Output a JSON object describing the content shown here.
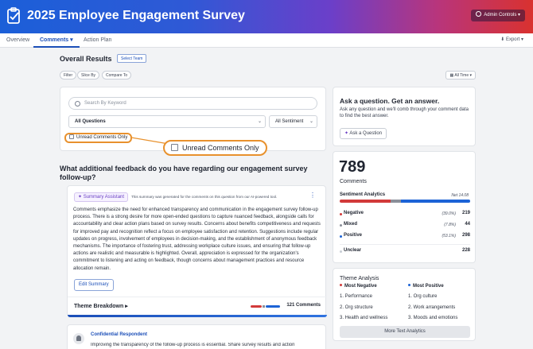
{
  "header": {
    "title": "2025 Employee Engagement Survey",
    "admin_label": "Admin Controls",
    "admin_caret": "▾"
  },
  "tabs": [
    {
      "label": "Overview"
    },
    {
      "label": "Comments",
      "caret": "▾"
    },
    {
      "label": "Action Plan"
    }
  ],
  "export_label": "Export",
  "export_caret": "▾",
  "results": {
    "title": "Overall Results",
    "select_team": "Select Team",
    "filter": "Filter",
    "slice_by": "Slice By",
    "compare_to": "Compare To",
    "time_range": "All Time",
    "time_caret": "▾"
  },
  "filters": {
    "search_placeholder": "Search By Keyword",
    "question_select": "All Questions",
    "sentiment_select": "All Sentiment",
    "caret": "⌄",
    "unread_label": "Unread Comments Only"
  },
  "question": "What additional feedback do you have regarding our engagement survey follow-up?",
  "summary": {
    "badge": "Summary Assistant",
    "note": "This summary was generated for the comments on this question from our AI-powered tool.",
    "kebab": "⋮",
    "text": "Comments emphasize the need for enhanced transparency and communication in the engagement survey follow-up process. There is a strong desire for more open-ended questions to capture nuanced feedback, alongside calls for accountability and clear action plans based on survey results. Concerns about benefits competitiveness and requests for improved pay and recognition reflect a focus on employee satisfaction and retention. Suggestions include regular updates on progress, involvement of employees in decision-making, and the establishment of anonymous feedback mechanisms. The importance of fostering trust, addressing workplace culture issues, and ensuring that follow-up actions are realistic and measurable is highlighted. Overall, appreciation is expressed for the organization's commitment to listening and acting on feedback, though concerns about management practices and resource allocation remain.",
    "edit_button": "Edit Summary",
    "theme_breakdown": "Theme Breakdown",
    "theme_caret": "▸",
    "comment_count": "121 Comments"
  },
  "comment": {
    "respondent": "Confidential Respondent",
    "text": "Improving the transparency of the follow-up process is essential. Share survey results and action"
  },
  "ask": {
    "title": "Ask a question. Get an answer.",
    "description": "Ask any question and we'll comb through your comment data to find the best answer.",
    "button": "Ask a Question"
  },
  "stats": {
    "total": "789",
    "total_label": "Comments",
    "sentiment_title": "Sentiment Analytics",
    "net": "Net 14.08",
    "rows": [
      {
        "label": "Negative",
        "pct": "(39.0%)",
        "count": "219",
        "color": "#d23a3a",
        "fraction": 0.39
      },
      {
        "label": "Mixed",
        "pct": "(7.8%)",
        "count": "44",
        "color": "#8a8f99",
        "fraction": 0.078
      },
      {
        "label": "Positive",
        "pct": "(53.1%)",
        "count": "298",
        "color": "#1c63d6",
        "fraction": 0.531
      },
      {
        "label": "Unclear",
        "pct": "",
        "count": "228",
        "color": "#c9ced6",
        "fraction": 0
      }
    ]
  },
  "themes": {
    "title": "Theme Analysis",
    "negative_head": "Most Negative",
    "positive_head": "Most Positive",
    "negative": [
      "1. Performance",
      "2. Org structure",
      "3. Health and wellness"
    ],
    "positive": [
      "1. Org culture",
      "2. Work arrangements",
      "3. Moods and emotions"
    ],
    "more_button": "More Text Analytics"
  },
  "colors": {
    "accent": "#1c4fb8",
    "highlight": "#e8912d",
    "negative": "#d23a3a",
    "positive": "#1c63d6"
  }
}
